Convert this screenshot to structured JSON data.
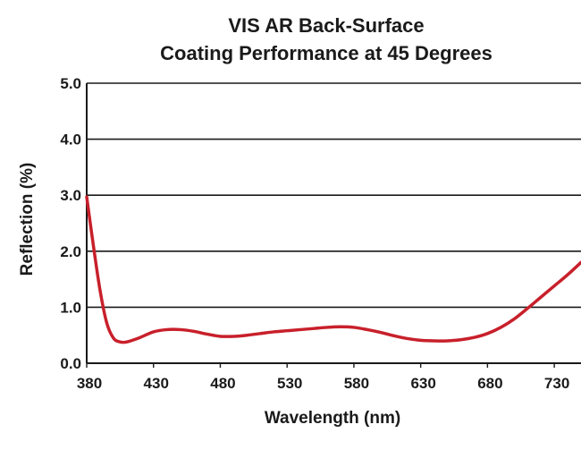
{
  "chart_data": {
    "type": "line",
    "title_lines": [
      "VIS AR Back-Surface",
      "Coating Performance at 45 Degrees"
    ],
    "xlabel": "Wavelength (nm)",
    "ylabel": "Reflection (%)",
    "xlim": [
      380,
      750
    ],
    "ylim": [
      0,
      5
    ],
    "x_ticks": [
      380,
      430,
      480,
      530,
      580,
      630,
      680,
      730
    ],
    "x_tick_labels": [
      "380",
      "430",
      "480",
      "530",
      "580",
      "630",
      "680",
      "730"
    ],
    "y_ticks": [
      0,
      1,
      2,
      3,
      4,
      5
    ],
    "y_tick_labels": [
      "0.0",
      "1.0",
      "2.0",
      "3.0",
      "4.0",
      "5.0"
    ],
    "grid": "horizontal",
    "line_color": "#c8202b",
    "series": [
      {
        "x": [
          380,
          385,
          390,
          395,
          400,
          405,
          410,
          420,
          430,
          440,
          450,
          460,
          470,
          480,
          490,
          500,
          510,
          520,
          530,
          540,
          550,
          560,
          570,
          580,
          590,
          600,
          610,
          620,
          630,
          640,
          650,
          660,
          670,
          680,
          690,
          700,
          710,
          720,
          730,
          740,
          750
        ],
        "y": [
          2.97,
          2.1,
          1.3,
          0.72,
          0.45,
          0.38,
          0.38,
          0.46,
          0.56,
          0.6,
          0.6,
          0.57,
          0.52,
          0.48,
          0.48,
          0.5,
          0.53,
          0.56,
          0.58,
          0.6,
          0.62,
          0.64,
          0.65,
          0.64,
          0.6,
          0.55,
          0.49,
          0.44,
          0.41,
          0.4,
          0.4,
          0.42,
          0.46,
          0.53,
          0.64,
          0.79,
          0.98,
          1.18,
          1.38,
          1.58,
          1.8
        ]
      }
    ]
  }
}
